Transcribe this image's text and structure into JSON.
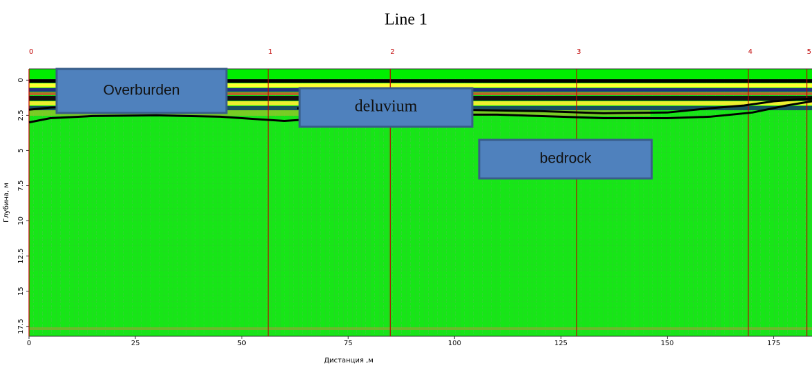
{
  "chart_data": {
    "type": "radargram",
    "title": "Line 1",
    "x_label": "Дистанция ,м",
    "y_label": "Глубина, м",
    "xlim": [
      0,
      184
    ],
    "xticks": [
      0,
      25,
      50,
      75,
      100,
      125,
      150,
      175
    ],
    "ylim": [
      -0.8,
      18.2
    ],
    "yticks": [
      0,
      2.5,
      5,
      7.5,
      10,
      12.5,
      15,
      17.5
    ],
    "markers": {
      "labels": [
        "0",
        "1",
        "2",
        "3",
        "4",
        "5"
      ],
      "x": [
        0,
        56.2,
        84.9,
        128.7,
        169,
        182.8
      ],
      "color": "#c00000"
    },
    "annotations": [
      "Overburden",
      "deluvium",
      "bedrock"
    ],
    "series": [
      {
        "color": "#000000",
        "x": [
          0,
          5,
          15,
          30,
          45,
          60,
          70,
          80,
          95,
          110,
          125,
          135,
          150,
          160,
          170,
          178,
          184
        ],
        "y": [
          3.0,
          2.7,
          2.55,
          2.5,
          2.6,
          2.9,
          2.7,
          2.5,
          2.45,
          2.45,
          2.6,
          2.7,
          2.7,
          2.6,
          2.3,
          1.8,
          1.5
        ]
      },
      {
        "color": "#000000",
        "x": [
          0,
          5,
          10
        ],
        "y": [
          2.1,
          1.95,
          1.9
        ]
      },
      {
        "color": "#000000",
        "x": [
          63,
          80,
          100,
          120,
          135,
          150,
          160,
          168,
          175,
          184
        ],
        "y": [
          2.0,
          2.05,
          2.1,
          2.2,
          2.35,
          2.3,
          2.0,
          1.8,
          1.5,
          1.3
        ]
      }
    ]
  }
}
